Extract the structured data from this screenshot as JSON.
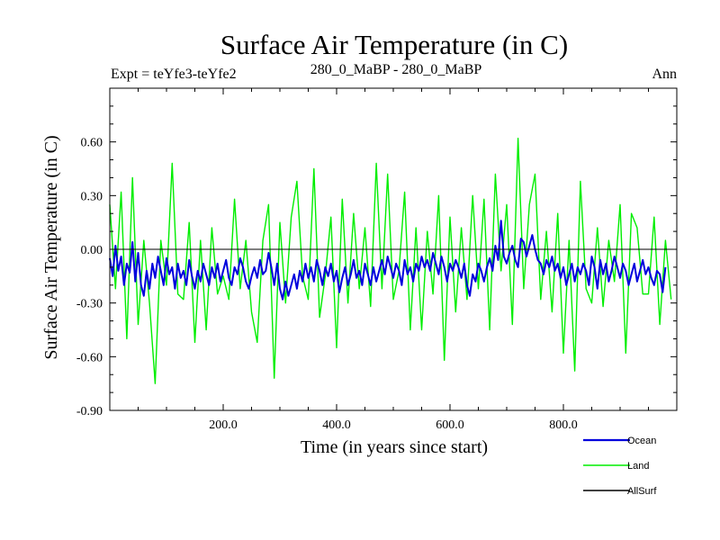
{
  "chart_data": {
    "type": "line",
    "title": "Surface Air Temperature (in C)",
    "subtitle_left": "Expt = teYfe3-teYfe2",
    "subtitle_center": "280_0_MaBP - 280_0_MaBP",
    "subtitle_right": "Ann",
    "xlabel": "Time (in years since start)",
    "ylabel": "Surface Air Temperature (in C)",
    "xlim": [
      0,
      1000
    ],
    "ylim": [
      -0.9,
      0.9
    ],
    "x_ticks": [
      200,
      400,
      600,
      800
    ],
    "x_tick_labels": [
      "200.0",
      "400.0",
      "600.0",
      "800.0"
    ],
    "y_ticks": [
      -0.9,
      -0.6,
      -0.3,
      0.0,
      0.3,
      0.6
    ],
    "y_tick_labels": [
      "-0.90",
      "-0.60",
      "-0.30",
      "0.00",
      "0.30",
      "0.60"
    ],
    "reference_line": 0.0,
    "legend": [
      {
        "name": "Ocean",
        "color": "#0000dd"
      },
      {
        "name": "Land",
        "color": "#00ee00"
      },
      {
        "name": "AllSurf",
        "color": "#000000"
      }
    ],
    "series": [
      {
        "name": "Land",
        "color": "#00ee00",
        "x_start": 0,
        "x_step": 10,
        "values": [
          0.25,
          -0.22,
          0.32,
          -0.5,
          0.4,
          -0.42,
          0.05,
          -0.3,
          -0.75,
          0.05,
          -0.2,
          0.48,
          -0.25,
          -0.28,
          0.15,
          -0.52,
          0.05,
          -0.45,
          0.12,
          -0.25,
          -0.15,
          -0.28,
          0.28,
          -0.22,
          0.05,
          -0.35,
          -0.52,
          0.05,
          0.25,
          -0.72,
          0.15,
          -0.3,
          0.18,
          0.38,
          -0.15,
          -0.28,
          0.45,
          -0.38,
          -0.15,
          0.18,
          -0.55,
          0.28,
          -0.3,
          0.2,
          -0.22,
          0.12,
          -0.32,
          0.48,
          -0.22,
          0.42,
          -0.28,
          -0.12,
          0.32,
          -0.45,
          0.12,
          -0.45,
          0.1,
          -0.25,
          0.3,
          -0.62,
          0.18,
          -0.35,
          0.12,
          -0.28,
          0.3,
          -0.22,
          0.28,
          -0.45,
          0.42,
          -0.12,
          0.25,
          -0.42,
          0.62,
          -0.22,
          0.25,
          0.42,
          -0.28,
          0.1,
          -0.35,
          0.2,
          -0.58,
          0.05,
          -0.68,
          0.38,
          -0.22,
          -0.3,
          0.12,
          -0.32,
          0.05,
          -0.18,
          0.25,
          -0.58,
          0.2,
          0.12,
          -0.25,
          -0.25,
          0.18,
          -0.42,
          0.05,
          -0.28
        ]
      },
      {
        "name": "Ocean",
        "color": "#0000dd",
        "x_start": 0,
        "x_step": 5,
        "values": [
          -0.05,
          -0.15,
          0.02,
          -0.12,
          -0.04,
          -0.2,
          -0.08,
          -0.13,
          0.04,
          -0.18,
          -0.02,
          -0.2,
          -0.26,
          -0.12,
          -0.22,
          -0.08,
          -0.16,
          -0.04,
          -0.12,
          -0.2,
          -0.05,
          -0.14,
          -0.1,
          -0.22,
          -0.08,
          -0.16,
          -0.12,
          -0.2,
          -0.06,
          -0.15,
          -0.22,
          -0.12,
          -0.18,
          -0.08,
          -0.14,
          -0.2,
          -0.1,
          -0.16,
          -0.08,
          -0.18,
          -0.12,
          -0.06,
          -0.16,
          -0.2,
          -0.1,
          -0.14,
          -0.05,
          -0.1,
          -0.18,
          -0.22,
          -0.15,
          -0.1,
          -0.16,
          -0.06,
          -0.14,
          -0.12,
          -0.02,
          -0.1,
          -0.2,
          -0.08,
          -0.22,
          -0.28,
          -0.18,
          -0.26,
          -0.2,
          -0.14,
          -0.22,
          -0.12,
          -0.18,
          -0.08,
          -0.16,
          -0.1,
          -0.18,
          -0.06,
          -0.12,
          -0.2,
          -0.1,
          -0.15,
          -0.08,
          -0.18,
          -0.12,
          -0.24,
          -0.16,
          -0.1,
          -0.2,
          -0.14,
          -0.06,
          -0.16,
          -0.12,
          -0.2,
          -0.08,
          -0.14,
          -0.2,
          -0.1,
          -0.18,
          -0.12,
          -0.06,
          -0.14,
          -0.04,
          -0.1,
          -0.16,
          -0.08,
          -0.12,
          -0.2,
          -0.06,
          -0.14,
          -0.1,
          -0.18,
          -0.08,
          -0.12,
          -0.04,
          -0.1,
          -0.06,
          -0.12,
          -0.02,
          -0.08,
          -0.14,
          -0.04,
          -0.1,
          -0.18,
          -0.08,
          -0.12,
          -0.06,
          -0.1,
          -0.16,
          -0.08,
          -0.2,
          -0.26,
          -0.14,
          -0.18,
          -0.08,
          -0.12,
          -0.18,
          -0.1,
          -0.05,
          -0.12,
          0.02,
          -0.06,
          0.16,
          -0.04,
          -0.08,
          -0.02,
          0.02,
          -0.06,
          -0.1,
          0.06,
          0.04,
          -0.04,
          0.02,
          0.08,
          0.0,
          -0.06,
          -0.08,
          -0.14,
          -0.06,
          -0.1,
          -0.04,
          -0.12,
          -0.08,
          -0.16,
          -0.1,
          -0.2,
          -0.14,
          -0.08,
          -0.18,
          -0.1,
          -0.14,
          -0.08,
          -0.12,
          -0.2,
          -0.04,
          -0.1,
          -0.22,
          -0.06,
          -0.14,
          -0.08,
          -0.18,
          -0.12,
          -0.04,
          -0.1,
          -0.16,
          -0.08,
          -0.12,
          -0.2,
          -0.14,
          -0.08,
          -0.18,
          -0.12,
          -0.06,
          -0.14,
          -0.1,
          -0.16,
          -0.2,
          -0.12,
          -0.14,
          -0.24,
          -0.1
        ]
      }
    ]
  }
}
